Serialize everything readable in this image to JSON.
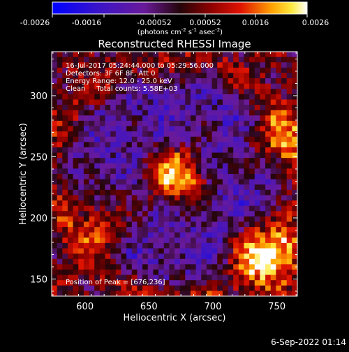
{
  "chart_data": {
    "type": "heatmap",
    "title": "Reconstructed RHESSI Image",
    "xlabel": "Heliocentric X (arcsec)",
    "ylabel": "Heliocentric Y (arcsec)",
    "xlim": [
      574,
      766
    ],
    "ylim": [
      136,
      336
    ],
    "x_ticks": [
      "600",
      "650",
      "700",
      "750"
    ],
    "y_ticks": [
      "150",
      "200",
      "250",
      "300"
    ],
    "colorbar": {
      "range": [
        -0.0026,
        0.0026
      ],
      "tick_labels": [
        "-0.0026",
        "-0.0016",
        "-0.00052",
        "0.00052",
        "0.0016",
        "0.0026"
      ],
      "units_label": "(photons cm",
      "units_exp1": "-2",
      "units_mid": " s",
      "units_exp2": "-1",
      "units_after": " asec",
      "units_exp3": "-2",
      "units_close": ")"
    },
    "annotations": {
      "time_range": "16-Jul-2017 05:24:44.000 to 05:29:56.000",
      "detectors": "Detectors: 3F 6F 8F, Att 0",
      "energy_range": "Energy Range: 12.0 - 25.0 keV",
      "clean_total": "Clean     Total counts: 5.58E+03",
      "peak_position": "Position of Peak = [676,236]"
    },
    "peak": [
      676,
      236
    ],
    "sources": [
      {
        "x": 671,
        "y": 234,
        "amp": 1.0
      },
      {
        "x": 740,
        "y": 172,
        "amp": 0.9
      },
      {
        "x": 612,
        "y": 196,
        "amp": 0.62
      },
      {
        "x": 752,
        "y": 262,
        "amp": 0.55
      }
    ],
    "arcs": [
      {
        "cx": 672,
        "cy": 232,
        "r": 98,
        "amp": 0.42
      },
      {
        "cx": 672,
        "cy": 232,
        "r": 126,
        "amp": 0.35
      }
    ],
    "background_min": -0.002,
    "date_stamp": "6-Sep-2022 01:14"
  }
}
